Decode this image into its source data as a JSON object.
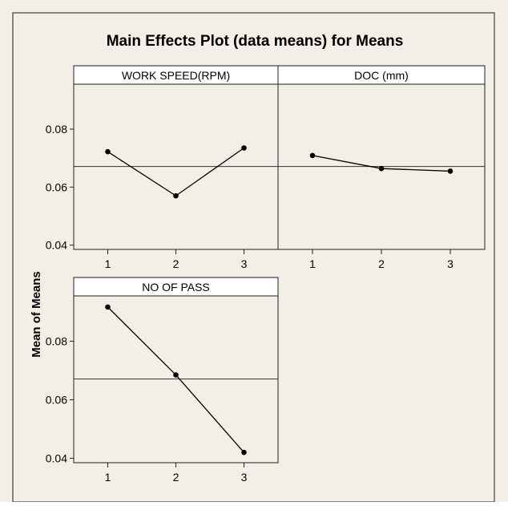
{
  "chart_data": {
    "type": "line",
    "title": "Main Effects Plot (data means) for Means",
    "ylabel": "Mean of Means",
    "reference_line": 0.0671,
    "ylim": [
      0.0385,
      0.0955
    ],
    "y_ticks": [
      "0.04",
      "0.06",
      "0.08"
    ],
    "panels": [
      {
        "title": "WORK SPEED(RPM)",
        "categories": [
          "1",
          "2",
          "3"
        ],
        "values": [
          0.0722,
          0.057,
          0.0735
        ]
      },
      {
        "title": "DOC (mm)",
        "categories": [
          "1",
          "2",
          "3"
        ],
        "values": [
          0.0709,
          0.0664,
          0.0655
        ]
      },
      {
        "title": "NO OF PASS",
        "categories": [
          "1",
          "2",
          "3"
        ],
        "values": [
          0.0917,
          0.0685,
          0.042
        ]
      }
    ]
  },
  "colors": {
    "background": "#f2efe6",
    "line": "#000000",
    "border": "#5a5a5a",
    "axis": "#222222"
  }
}
